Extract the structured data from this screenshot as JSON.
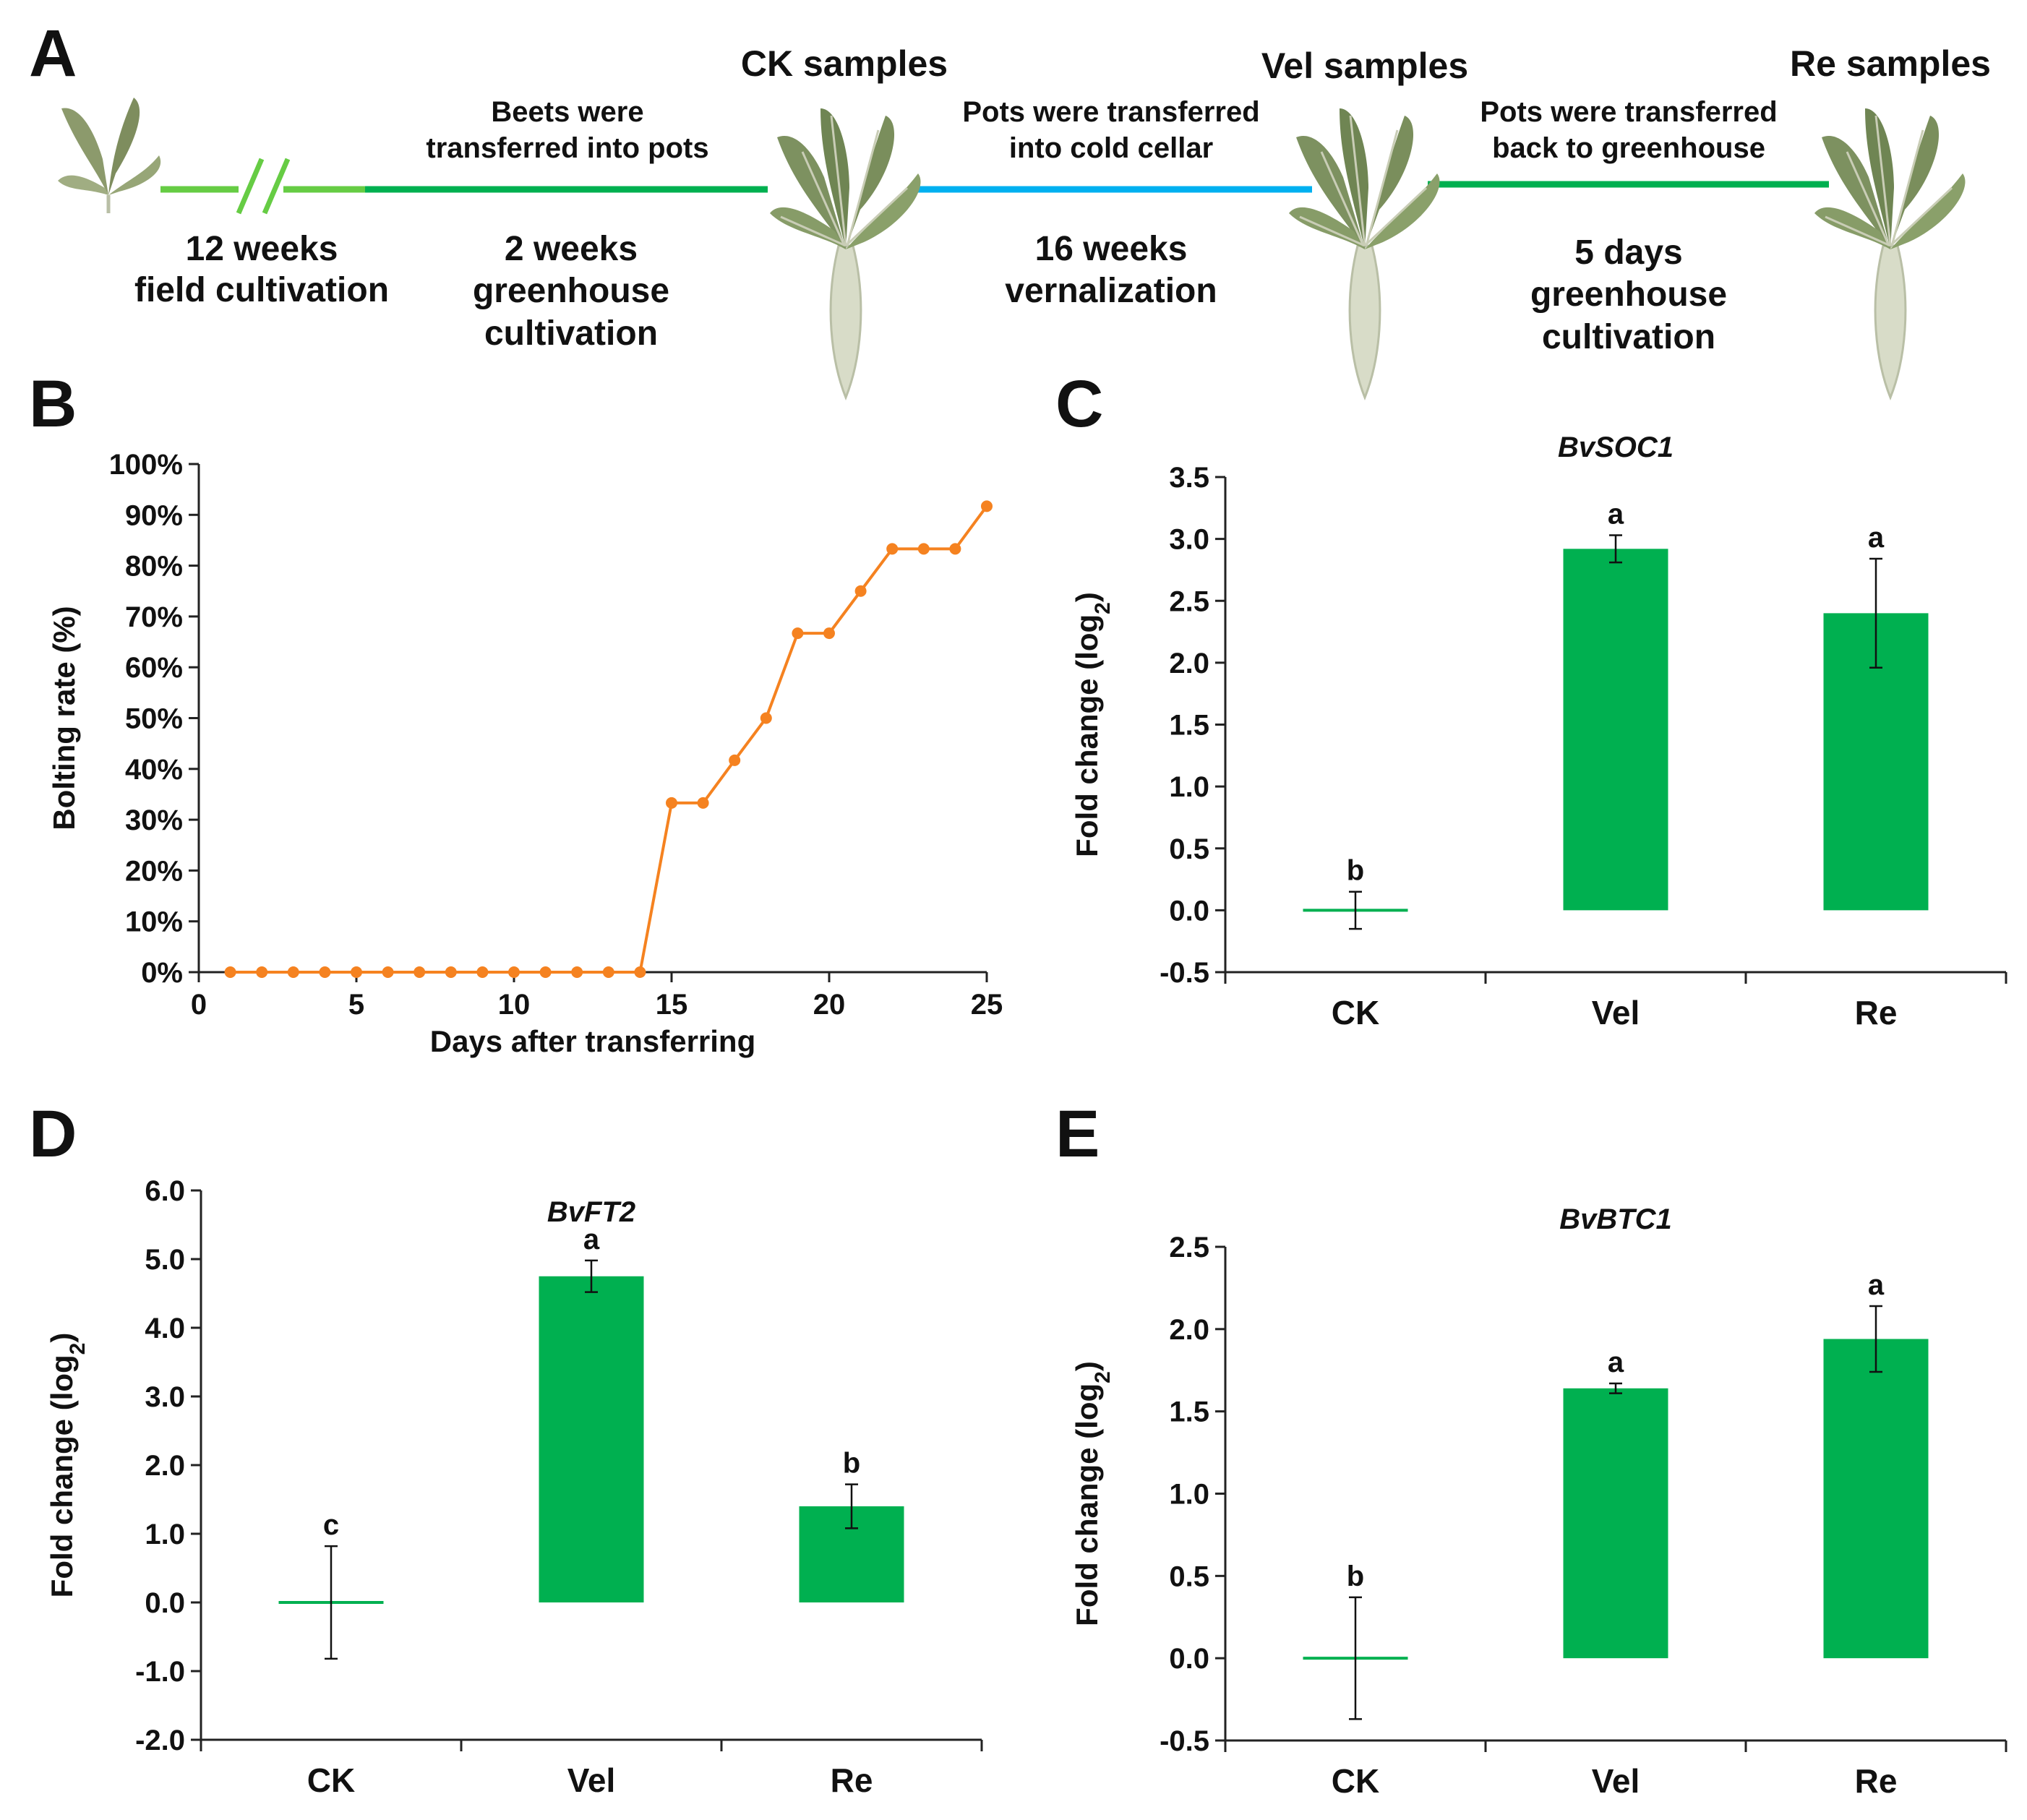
{
  "colors": {
    "bar": "#00b050",
    "line": "#f58220",
    "field_line": "#66cc44",
    "greenhouse_line": "#00b050",
    "cold_line": "#00b0f0",
    "axis": "#222222"
  },
  "panel_a": {
    "letter": "A",
    "samples": [
      "CK samples",
      "Vel samples",
      "Re samples"
    ],
    "steps": [
      {
        "above": [],
        "below": [
          "12 weeks",
          "field cultivation"
        ]
      },
      {
        "above": [
          "Beets were",
          "transferred into pots"
        ],
        "below": [
          "2 weeks",
          "greenhouse",
          "cultivation"
        ]
      },
      {
        "above": [
          "Pots were transferred",
          "into cold cellar"
        ],
        "below": [
          "16 weeks",
          "vernalization"
        ]
      },
      {
        "above": [
          "Pots were transferred",
          "back to greenhouse"
        ],
        "below": [
          "5 days",
          "greenhouse",
          "cultivation"
        ]
      }
    ],
    "icons": [
      "young-beet-plant-icon",
      "beet-plant-icon",
      "beet-plant-icon",
      "beet-plant-icon"
    ]
  },
  "chart_data": [
    {
      "panel": "B",
      "type": "line",
      "title": "",
      "xlabel": "Days after transferring",
      "ylabel": "Bolting rate (%)",
      "xlim": [
        0,
        25
      ],
      "ylim": [
        0,
        100
      ],
      "xticks": [
        0,
        5,
        10,
        15,
        20,
        25
      ],
      "yticks": [
        0,
        10,
        20,
        30,
        40,
        50,
        60,
        70,
        80,
        90,
        100
      ],
      "ytick_labels": [
        "0%",
        "10%",
        "20%",
        "30%",
        "40%",
        "50%",
        "60%",
        "70%",
        "80%",
        "90%",
        "100%"
      ],
      "series": [
        {
          "name": "Bolting rate",
          "x": [
            1,
            2,
            3,
            4,
            5,
            6,
            7,
            8,
            9,
            10,
            11,
            12,
            13,
            14,
            15,
            16,
            17,
            18,
            19,
            20,
            21,
            22,
            23,
            24,
            25
          ],
          "values": [
            0,
            0,
            0,
            0,
            0,
            0,
            0,
            0,
            0,
            0,
            0,
            0,
            0,
            0,
            33.3,
            33.3,
            41.7,
            50,
            66.7,
            66.7,
            75,
            83.3,
            83.3,
            83.3,
            91.7
          ]
        }
      ]
    },
    {
      "panel": "C",
      "type": "bar",
      "title": "BvSOC1",
      "xlabel": "",
      "ylabel_main": "Fold change (log",
      "ylabel_sub": "2",
      "ylabel_end": ")",
      "categories": [
        "CK",
        "Vel",
        "Re"
      ],
      "values": [
        0,
        2.92,
        2.4
      ],
      "errors": [
        0.15,
        0.11,
        0.44
      ],
      "significance": [
        "b",
        "a",
        "a"
      ],
      "ylim": [
        -0.5,
        3.5
      ],
      "yticks": [
        -0.5,
        0,
        0.5,
        1,
        1.5,
        2,
        2.5,
        3,
        3.5
      ],
      "ytick_labels": [
        "-0.5",
        "0.0",
        "0.5",
        "1.0",
        "1.5",
        "2.0",
        "2.5",
        "3.0",
        "3.5"
      ]
    },
    {
      "panel": "D",
      "type": "bar",
      "title": "BvFT2",
      "xlabel": "",
      "ylabel_main": "Fold change (log",
      "ylabel_sub": "2",
      "ylabel_end": ")",
      "categories": [
        "CK",
        "Vel",
        "Re"
      ],
      "values": [
        0,
        4.75,
        1.4
      ],
      "errors": [
        0.82,
        0.23,
        0.32
      ],
      "significance": [
        "c",
        "a",
        "b"
      ],
      "ylim": [
        -2,
        6
      ],
      "yticks": [
        -2,
        -1,
        0,
        1,
        2,
        3,
        4,
        5,
        6
      ],
      "ytick_labels": [
        "-2.0",
        "-1.0",
        "0.0",
        "1.0",
        "2.0",
        "3.0",
        "4.0",
        "5.0",
        "6.0"
      ]
    },
    {
      "panel": "E",
      "type": "bar",
      "title": "BvBTC1",
      "xlabel": "",
      "ylabel_main": "Fold change (log",
      "ylabel_sub": "2",
      "ylabel_end": ")",
      "categories": [
        "CK",
        "Vel",
        "Re"
      ],
      "values": [
        0,
        1.64,
        1.94
      ],
      "errors": [
        0.37,
        0.03,
        0.2
      ],
      "significance": [
        "b",
        "a",
        "a"
      ],
      "ylim": [
        -0.5,
        2.5
      ],
      "yticks": [
        -0.5,
        0,
        0.5,
        1,
        1.5,
        2,
        2.5
      ],
      "ytick_labels": [
        "-0.5",
        "0.0",
        "0.5",
        "1.0",
        "1.5",
        "2.0",
        "2.5"
      ]
    }
  ]
}
